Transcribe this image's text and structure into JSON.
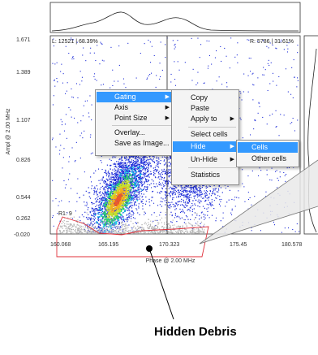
{
  "plot": {
    "y_axis_label": "Ampl @ 2.00 MHz",
    "x_axis_label": "Phase @ 2.00 MHz",
    "y_ticks": [
      "1.671",
      "1.389",
      "1.107",
      "0.826",
      "0.544",
      "0.262",
      "-0.020"
    ],
    "x_ticks": [
      "160.068",
      "165.195",
      "170.323",
      "175.45",
      "180.578"
    ],
    "left_stat": "L: 12521 | 68.39%",
    "right_stat": "R: 5786 | 31.61%",
    "gate_label": "R1: 9",
    "gate_color": "#e0303a"
  },
  "context_menu": {
    "items": [
      {
        "label": "Gating",
        "submenu": true,
        "highlighted": true
      },
      {
        "label": "Axis",
        "submenu": true
      },
      {
        "label": "Point Size",
        "submenu": true
      },
      {
        "label": "Overlay..."
      },
      {
        "label": "Save as Image..."
      }
    ]
  },
  "submenu": {
    "items": [
      {
        "label": "Copy"
      },
      {
        "label": "Paste"
      },
      {
        "label": "Apply to",
        "submenu": true
      },
      {
        "label": "Select cells"
      },
      {
        "label": "Hide",
        "submenu": true,
        "highlighted": true
      },
      {
        "label": "Un-Hide",
        "submenu": true
      },
      {
        "label": "Statistics"
      }
    ]
  },
  "hide_submenu": {
    "items": [
      {
        "label": "Cells",
        "highlighted": true
      },
      {
        "label": "Other cells"
      }
    ]
  },
  "annotation": {
    "caption": "Hidden Debris"
  },
  "colors": {
    "highlight": "#3399ff",
    "points_blue": "#1c2bd8",
    "hidden_points": "#b4b4b4"
  }
}
